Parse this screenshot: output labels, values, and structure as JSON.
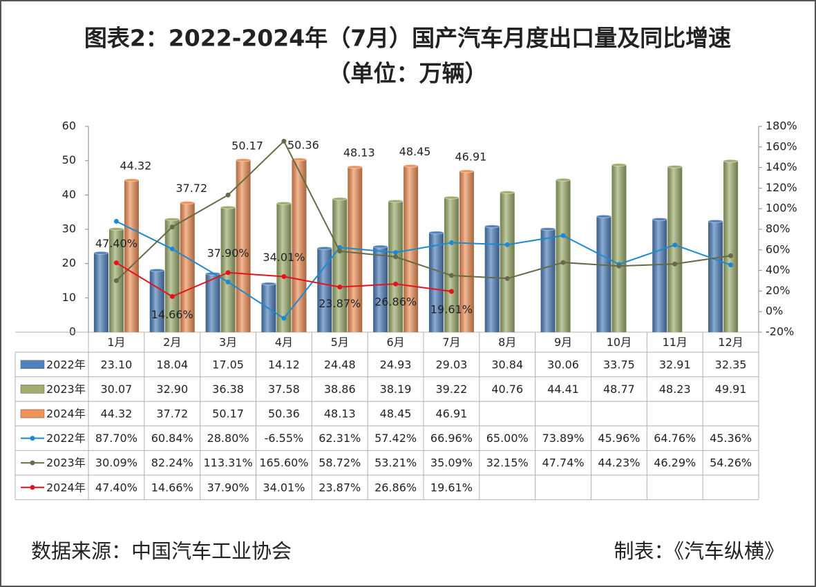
{
  "chart_data": {
    "type": "bar",
    "title": "图表2：2022-2024年（7月）国产汽车月度出口量及同比增速",
    "subtitle": "（单位：万辆）",
    "categories": [
      "1月",
      "2月",
      "3月",
      "4月",
      "5月",
      "6月",
      "7月",
      "8月",
      "9月",
      "10月",
      "11月",
      "12月"
    ],
    "series": [
      {
        "name": "2022年",
        "type": "bar",
        "color": "#4f81bd",
        "values": [
          23.1,
          18.04,
          17.05,
          14.12,
          24.48,
          24.93,
          29.03,
          30.84,
          30.06,
          33.75,
          32.91,
          32.35
        ],
        "value_labels": [
          "23.10",
          "18.04",
          "17.05",
          "14.12",
          "24.48",
          "24.93",
          "29.03",
          "30.84",
          "30.06",
          "33.75",
          "32.91",
          "32.35"
        ]
      },
      {
        "name": "2023年",
        "type": "bar",
        "color": "#9fae6e",
        "values": [
          30.07,
          32.9,
          36.38,
          37.58,
          38.86,
          38.19,
          39.22,
          40.76,
          44.41,
          48.77,
          48.23,
          49.91
        ],
        "value_labels": [
          "30.07",
          "32.90",
          "36.38",
          "37.58",
          "38.86",
          "38.19",
          "39.22",
          "40.76",
          "44.41",
          "48.77",
          "48.23",
          "49.91"
        ]
      },
      {
        "name": "2024年",
        "type": "bar",
        "color": "#f0925a",
        "show_labels": true,
        "values": [
          44.32,
          37.72,
          50.17,
          50.36,
          48.13,
          48.45,
          46.91,
          null,
          null,
          null,
          null,
          null
        ],
        "value_labels": [
          "44.32",
          "37.72",
          "50.17",
          "50.36",
          "48.13",
          "48.45",
          "46.91",
          null,
          null,
          null,
          null,
          null
        ]
      },
      {
        "name": "2022年",
        "type": "line",
        "axis": "y2",
        "color": "#1b8ad3",
        "values": [
          87.7,
          60.84,
          28.8,
          -6.55,
          62.31,
          57.42,
          66.96,
          65,
          73.89,
          45.96,
          64.76,
          45.36
        ],
        "value_labels": [
          "87.70%",
          "60.84%",
          "28.80%",
          "-6.55%",
          "62.31%",
          "57.42%",
          "66.96%",
          "65.00%",
          "73.89%",
          "45.96%",
          "64.76%",
          "45.36%"
        ]
      },
      {
        "name": "2023年",
        "type": "line",
        "axis": "y2",
        "color": "#666a46",
        "values": [
          30.09,
          82.24,
          113.31,
          165.6,
          58.72,
          53.21,
          35.09,
          32.15,
          47.74,
          44.23,
          46.29,
          54.26
        ],
        "value_labels": [
          "30.09%",
          "82.24%",
          "113.31%",
          "165.60%",
          "58.72%",
          "53.21%",
          "35.09%",
          "32.15%",
          "47.74%",
          "44.23%",
          "46.29%",
          "54.26%"
        ]
      },
      {
        "name": "2024年",
        "type": "line",
        "axis": "y2",
        "color": "#e3131b",
        "show_labels": true,
        "values": [
          47.4,
          14.66,
          37.9,
          34.01,
          23.87,
          26.86,
          19.61,
          null,
          null,
          null,
          null,
          null
        ],
        "value_labels": [
          "47.40%",
          "14.66%",
          "37.90%",
          "34.01%",
          "23.87%",
          "26.86%",
          "19.61%",
          null,
          null,
          null,
          null,
          null
        ]
      }
    ],
    "ylim": [
      0,
      60
    ],
    "yticks": [
      0,
      10,
      20,
      30,
      40,
      50,
      60
    ],
    "y2lim": [
      -20,
      180
    ],
    "y2ticks": [
      {
        "value": -20,
        "label": "-20%"
      },
      {
        "value": 0,
        "label": "0%"
      },
      {
        "value": 20,
        "label": "20%"
      },
      {
        "value": 40,
        "label": "40%"
      },
      {
        "value": 60,
        "label": "60%"
      },
      {
        "value": 80,
        "label": "80%"
      },
      {
        "value": 100,
        "label": "100%"
      },
      {
        "value": 120,
        "label": "120%"
      },
      {
        "value": 140,
        "label": "140%"
      },
      {
        "value": 160,
        "label": "160%"
      },
      {
        "value": 180,
        "label": "180%"
      }
    ]
  },
  "footer": {
    "source": "数据来源：中国汽车工业协会",
    "credit": "制表：《汽车纵横》"
  }
}
